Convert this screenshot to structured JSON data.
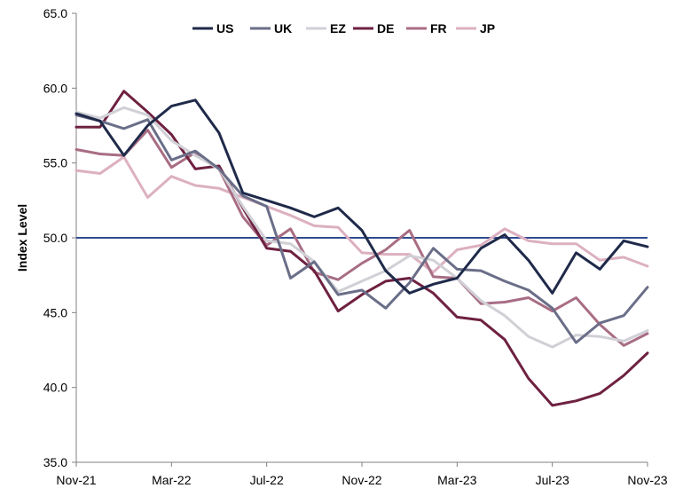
{
  "chart_data": {
    "type": "line",
    "title": "",
    "xlabel": "",
    "ylabel": "Index Level",
    "ylim": [
      35,
      65
    ],
    "yticks": [
      "35.0",
      "40.0",
      "45.0",
      "50.0",
      "55.0",
      "60.0",
      "65.0"
    ],
    "xticks": [
      "Nov-21",
      "Mar-22",
      "Jul-22",
      "Nov-22",
      "Mar-23",
      "Jul-23",
      "Nov-23"
    ],
    "reference_line": 50,
    "reference_color": "#2f4b8f",
    "legend_position": "top",
    "x": [
      "Nov-21",
      "Dec-21",
      "Jan-22",
      "Feb-22",
      "Mar-22",
      "Apr-22",
      "May-22",
      "Jun-22",
      "Jul-22",
      "Aug-22",
      "Sep-22",
      "Oct-22",
      "Nov-22",
      "Dec-22",
      "Jan-23",
      "Feb-23",
      "Mar-23",
      "Apr-23",
      "May-23",
      "Jun-23",
      "Jul-23",
      "Aug-23",
      "Sep-23",
      "Oct-23",
      "Nov-23"
    ],
    "series": [
      {
        "name": "US",
        "color": "#1f2a4a",
        "values": [
          58.3,
          57.8,
          55.5,
          57.5,
          58.8,
          59.2,
          57.0,
          53.0,
          52.5,
          52.0,
          51.4,
          52.0,
          50.5,
          47.8,
          46.3,
          46.9,
          47.3,
          49.3,
          50.2,
          48.5,
          46.3,
          49.0,
          47.9,
          49.8,
          49.4
        ]
      },
      {
        "name": "UK",
        "color": "#6a6e88",
        "values": [
          58.2,
          57.8,
          57.3,
          57.9,
          55.2,
          55.8,
          54.6,
          52.8,
          52.1,
          47.3,
          48.4,
          46.2,
          46.5,
          45.3,
          47.0,
          49.3,
          47.9,
          47.8,
          47.1,
          46.5,
          45.3,
          43.0,
          44.3,
          44.8,
          46.7
        ]
      },
      {
        "name": "EZ",
        "color": "#d0d0d6",
        "values": [
          58.4,
          58.0,
          58.7,
          58.2,
          56.5,
          55.5,
          54.6,
          52.1,
          49.8,
          49.6,
          48.4,
          46.4,
          47.1,
          47.8,
          48.8,
          48.5,
          47.3,
          45.8,
          44.8,
          43.4,
          42.7,
          43.5,
          43.4,
          43.1,
          43.8
        ]
      },
      {
        "name": "DE",
        "color": "#6e2140",
        "values": [
          57.4,
          57.4,
          59.8,
          58.4,
          56.9,
          54.6,
          54.8,
          52.0,
          49.3,
          49.1,
          47.8,
          45.1,
          46.2,
          47.1,
          47.3,
          46.3,
          44.7,
          44.5,
          43.2,
          40.6,
          38.8,
          39.1,
          39.6,
          40.8,
          42.3
        ]
      },
      {
        "name": "FR",
        "color": "#a86d84",
        "values": [
          55.9,
          55.6,
          55.5,
          57.2,
          54.7,
          55.7,
          54.6,
          51.4,
          49.5,
          50.6,
          47.7,
          47.2,
          48.3,
          49.2,
          50.5,
          47.4,
          47.3,
          45.6,
          45.7,
          46.0,
          45.1,
          46.0,
          44.2,
          42.8,
          43.6
        ]
      },
      {
        "name": "JP",
        "color": "#dcb0c0",
        "values": [
          54.5,
          54.3,
          55.4,
          52.7,
          54.1,
          53.5,
          53.3,
          52.7,
          52.1,
          51.5,
          50.8,
          50.7,
          49.0,
          48.9,
          48.9,
          47.7,
          49.2,
          49.5,
          50.6,
          49.8,
          49.6,
          49.6,
          48.5,
          48.7,
          48.1
        ]
      }
    ]
  }
}
